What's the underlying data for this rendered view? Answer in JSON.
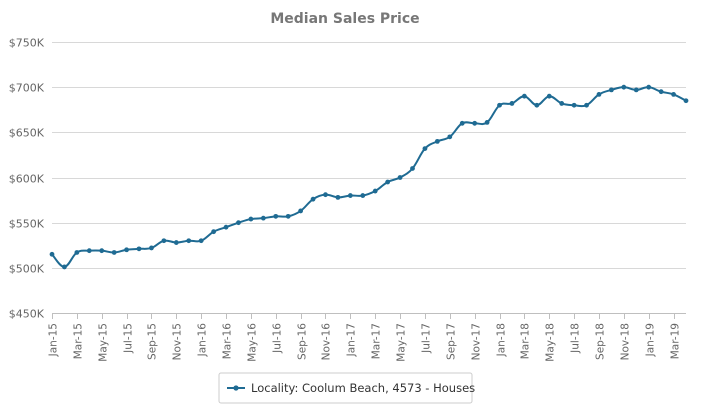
{
  "chart_data": {
    "type": "line",
    "title": "Median Sales Price",
    "xlabel": "",
    "ylabel": "",
    "ylim": [
      450000,
      750000
    ],
    "yticks": [
      450000,
      500000,
      550000,
      600000,
      650000,
      700000,
      750000
    ],
    "ytick_labels": [
      "$450K",
      "$500K",
      "$550K",
      "$600K",
      "$650K",
      "$700K",
      "$750K"
    ],
    "x_tick_labels": [
      "Jan-15",
      "Mar-15",
      "May-15",
      "Jul-15",
      "Sep-15",
      "Nov-15",
      "Jan-16",
      "Mar-16",
      "May-16",
      "Jul-16",
      "Sep-16",
      "Nov-16",
      "Jan-17",
      "Mar-17",
      "May-17",
      "Jul-17",
      "Sep-17",
      "Nov-17",
      "Jan-18",
      "Mar-18",
      "May-18",
      "Jul-18",
      "Sep-18",
      "Nov-18",
      "Jan-19",
      "Mar-19"
    ],
    "categories": [
      "Jan-15",
      "Feb-15",
      "Mar-15",
      "Apr-15",
      "May-15",
      "Jun-15",
      "Jul-15",
      "Aug-15",
      "Sep-15",
      "Oct-15",
      "Nov-15",
      "Dec-15",
      "Jan-16",
      "Feb-16",
      "Mar-16",
      "Apr-16",
      "May-16",
      "Jun-16",
      "Jul-16",
      "Aug-16",
      "Sep-16",
      "Oct-16",
      "Nov-16",
      "Dec-16",
      "Jan-17",
      "Feb-17",
      "Mar-17",
      "Apr-17",
      "May-17",
      "Jun-17",
      "Jul-17",
      "Aug-17",
      "Sep-17",
      "Oct-17",
      "Nov-17",
      "Dec-17",
      "Jan-18",
      "Feb-18",
      "Mar-18",
      "Apr-18",
      "May-18",
      "Jun-18",
      "Jul-18",
      "Aug-18",
      "Sep-18",
      "Oct-18",
      "Nov-18",
      "Dec-18",
      "Jan-19",
      "Feb-19",
      "Mar-19",
      "Apr-19"
    ],
    "series": [
      {
        "name": "Locality: Coolum Beach, 4573 - Houses",
        "color": "#1f6b93",
        "values": [
          515000,
          501000,
          517000,
          519000,
          519000,
          517000,
          520000,
          521000,
          522000,
          530000,
          528000,
          530000,
          530000,
          540000,
          545000,
          550000,
          554000,
          555000,
          557000,
          557000,
          563000,
          576000,
          581000,
          578000,
          580000,
          580000,
          585000,
          595000,
          600000,
          610000,
          632000,
          640000,
          645000,
          660000,
          660000,
          661000,
          680000,
          682000,
          690000,
          680000,
          690000,
          682000,
          680000,
          680000,
          692000,
          697000,
          700000,
          697000,
          700000,
          695000,
          692000,
          685000
        ]
      }
    ],
    "grid": true,
    "legend": "bottom-center"
  }
}
